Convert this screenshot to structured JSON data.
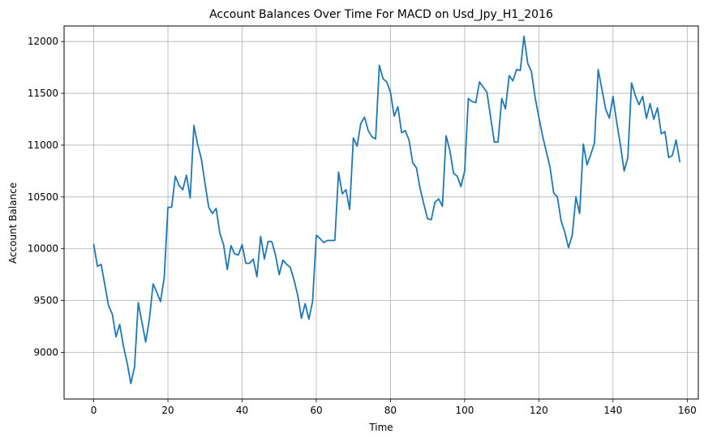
{
  "chart_data": {
    "type": "line",
    "title": "Account Balances Over Time For MACD on Usd_Jpy_H1_2016",
    "xlabel": "Time",
    "ylabel": "Account Balance",
    "xlim": [
      -8,
      163
    ],
    "ylim": [
      8550,
      12150
    ],
    "grid": true,
    "x_ticks": [
      0,
      20,
      40,
      60,
      80,
      100,
      120,
      140,
      160
    ],
    "x_tick_labels": [
      "0",
      "20",
      "40",
      "60",
      "80",
      "100",
      "120",
      "140",
      "160"
    ],
    "y_ticks": [
      9000,
      9500,
      10000,
      10500,
      11000,
      11500,
      12000
    ],
    "y_tick_labels": [
      "9000",
      "9500",
      "10000",
      "10500",
      "11000",
      "11500",
      "12000"
    ],
    "series": [
      {
        "color": "#1f77b4",
        "values": [
          10040,
          9830,
          9850,
          9650,
          9450,
          9370,
          9150,
          9270,
          9060,
          8900,
          8700,
          8860,
          9480,
          9290,
          9100,
          9320,
          9660,
          9580,
          9490,
          9720,
          10400,
          10400,
          10700,
          10610,
          10570,
          10710,
          10490,
          11190,
          11010,
          10870,
          10630,
          10400,
          10340,
          10390,
          10150,
          10040,
          9800,
          10030,
          9950,
          9940,
          10040,
          9860,
          9860,
          9900,
          9730,
          10120,
          9900,
          10070,
          10070,
          9940,
          9750,
          9890,
          9850,
          9820,
          9700,
          9550,
          9330,
          9470,
          9320,
          9490,
          10130,
          10100,
          10060,
          10080,
          10080,
          10080,
          10740,
          10530,
          10570,
          10380,
          11070,
          10990,
          11210,
          11270,
          11140,
          11080,
          11060,
          11770,
          11640,
          11610,
          11510,
          11280,
          11370,
          11120,
          11140,
          11050,
          10830,
          10780,
          10580,
          10430,
          10290,
          10280,
          10450,
          10480,
          10410,
          11090,
          10950,
          10730,
          10700,
          10600,
          10750,
          11450,
          11420,
          11410,
          11610,
          11560,
          11510,
          11270,
          11030,
          11030,
          11450,
          11350,
          11670,
          11620,
          11730,
          11720,
          12050,
          11790,
          11710,
          11460,
          11270,
          11090,
          10940,
          10790,
          10540,
          10500,
          10270,
          10160,
          10010,
          10130,
          10500,
          10340,
          11010,
          10810,
          10910,
          11020,
          11730,
          11540,
          11350,
          11260,
          11470,
          11220,
          11000,
          10750,
          10880,
          11600,
          11480,
          11390,
          11470,
          11260,
          11400,
          11250,
          11360,
          11110,
          11130,
          10880,
          10900,
          11050,
          10840
        ]
      }
    ]
  }
}
